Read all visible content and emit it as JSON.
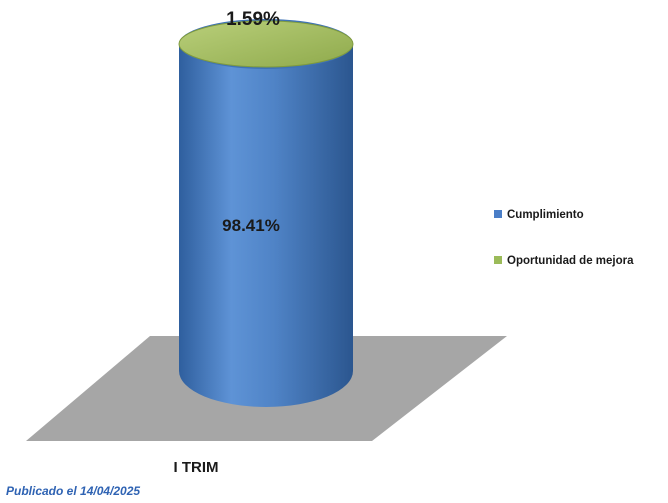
{
  "chart_data": {
    "type": "bar",
    "style": "3d-stacked-cylinder",
    "categories": [
      "I TRIM"
    ],
    "series": [
      {
        "name": "Cumplimiento",
        "values": [
          98.41
        ],
        "color": "#4a7ec7",
        "label": "98.41%"
      },
      {
        "name": "Oportunidad de mejora",
        "values": [
          1.59
        ],
        "color": "#9bbb59",
        "label": "1.59%"
      }
    ],
    "ylim": [
      0,
      100
    ],
    "grid": false,
    "legend": "right"
  },
  "footer": {
    "published": "Publicado el 14/04/2025"
  }
}
